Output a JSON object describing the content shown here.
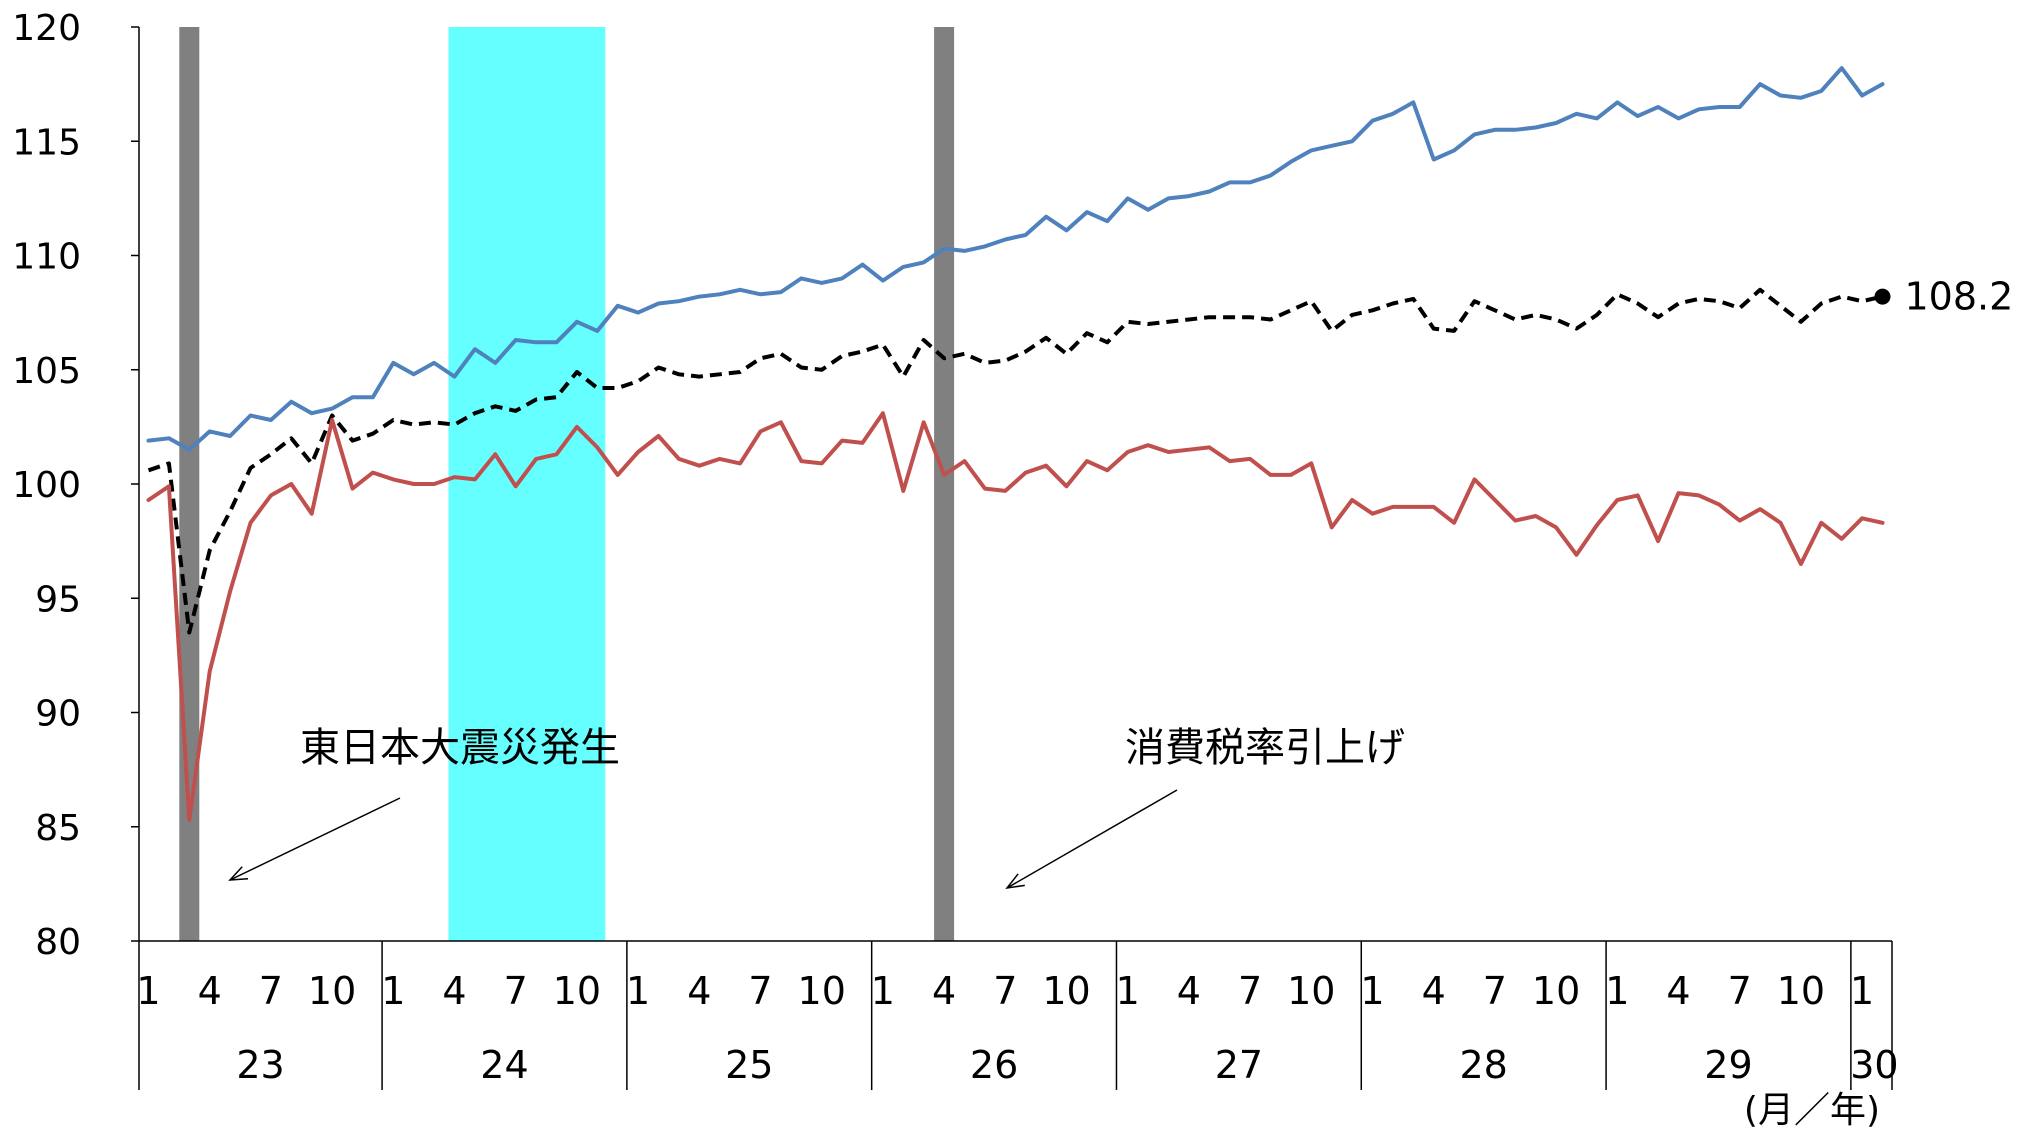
{
  "chart_data": {
    "type": "line",
    "x_start": "2011-01",
    "y_ticks": [
      80,
      85,
      90,
      95,
      100,
      105,
      110,
      115,
      120
    ],
    "ylim": [
      80,
      120
    ],
    "month_ticks": [
      "1",
      "4",
      "7",
      "10"
    ],
    "year_labels": [
      "23",
      "24",
      "25",
      "26",
      "27",
      "28",
      "29",
      "30"
    ],
    "last_year_month_label": "1",
    "unit_label": "(月／年)",
    "grid": false,
    "bands": [
      {
        "from": "2011-03",
        "to": "2011-03",
        "color": "#808080"
      },
      {
        "from": "2012-04",
        "to": "2012-11",
        "color": "#66ffff"
      },
      {
        "from": "2014-04",
        "to": "2014-04",
        "color": "#808080"
      }
    ],
    "annotations": [
      {
        "text": "東日本大震災発生",
        "arrow_to": "2011-03"
      },
      {
        "text": "消費税率引上げ",
        "arrow_to": "2014-04"
      }
    ],
    "end_label": "108.2",
    "series": [
      {
        "color": "#4f81bd",
        "style": "solid",
        "values": [
          101.9,
          102.0,
          101.5,
          102.3,
          102.1,
          103.0,
          102.8,
          103.6,
          103.1,
          103.3,
          103.8,
          103.8,
          105.3,
          104.8,
          105.3,
          104.7,
          105.9,
          105.3,
          106.3,
          106.2,
          106.2,
          107.1,
          106.7,
          107.8,
          107.5,
          107.9,
          108.0,
          108.2,
          108.3,
          108.5,
          108.3,
          108.4,
          109.0,
          108.8,
          109.0,
          109.6,
          108.9,
          109.5,
          109.7,
          110.3,
          110.2,
          110.4,
          110.7,
          110.9,
          111.7,
          111.1,
          111.9,
          111.5,
          112.5,
          112.0,
          112.5,
          112.6,
          112.8,
          113.2,
          113.2,
          113.5,
          114.1,
          114.6,
          114.8,
          115.0,
          115.9,
          116.2,
          116.7,
          114.2,
          114.6,
          115.3,
          115.5,
          115.5,
          115.6,
          115.8,
          116.2,
          116.0,
          116.7,
          116.1,
          116.5,
          116.0,
          116.4,
          116.5,
          116.5,
          117.5,
          117.0,
          116.9,
          117.2,
          118.2,
          117.0,
          117.5
        ]
      },
      {
        "color": "#000000",
        "style": "dashed",
        "values": [
          100.6,
          100.9,
          93.5,
          97.1,
          98.8,
          100.7,
          101.3,
          102.0,
          100.9,
          103.0,
          101.9,
          102.2,
          102.8,
          102.6,
          102.7,
          102.6,
          103.1,
          103.4,
          103.2,
          103.7,
          103.8,
          104.9,
          104.2,
          104.2,
          104.5,
          105.1,
          104.8,
          104.7,
          104.8,
          104.9,
          105.5,
          105.7,
          105.1,
          105.0,
          105.6,
          105.8,
          106.1,
          104.7,
          106.3,
          105.5,
          105.7,
          105.3,
          105.4,
          105.8,
          106.4,
          105.7,
          106.6,
          106.2,
          107.1,
          107.0,
          107.1,
          107.2,
          107.3,
          107.3,
          107.3,
          107.2,
          107.6,
          108.0,
          106.7,
          107.4,
          107.6,
          107.9,
          108.1,
          106.8,
          106.7,
          108.0,
          107.6,
          107.2,
          107.4,
          107.2,
          106.8,
          107.4,
          108.3,
          107.9,
          107.3,
          107.9,
          108.1,
          108.0,
          107.7,
          108.5,
          107.8,
          107.1,
          107.9,
          108.2,
          108.0,
          108.2
        ]
      },
      {
        "color": "#c0504d",
        "style": "solid",
        "values": [
          99.3,
          99.9,
          85.3,
          91.8,
          95.3,
          98.3,
          99.5,
          100.0,
          98.7,
          102.8,
          99.8,
          100.5,
          100.2,
          100.0,
          100.0,
          100.3,
          100.2,
          101.3,
          99.9,
          101.1,
          101.3,
          102.5,
          101.6,
          100.4,
          101.4,
          102.1,
          101.1,
          100.8,
          101.1,
          100.9,
          102.3,
          102.7,
          101.0,
          100.9,
          101.9,
          101.8,
          103.1,
          99.7,
          102.7,
          100.4,
          101.0,
          99.8,
          99.7,
          100.5,
          100.8,
          99.9,
          101.0,
          100.6,
          101.4,
          101.7,
          101.4,
          101.5,
          101.6,
          101.0,
          101.1,
          100.4,
          100.4,
          100.9,
          98.1,
          99.3,
          98.7,
          99.0,
          99.0,
          99.0,
          98.3,
          100.2,
          99.3,
          98.4,
          98.6,
          98.1,
          96.9,
          98.2,
          99.3,
          99.5,
          97.5,
          99.6,
          99.5,
          99.1,
          98.4,
          98.9,
          98.3,
          96.5,
          98.3,
          97.6,
          98.5,
          98.3
        ]
      }
    ]
  }
}
